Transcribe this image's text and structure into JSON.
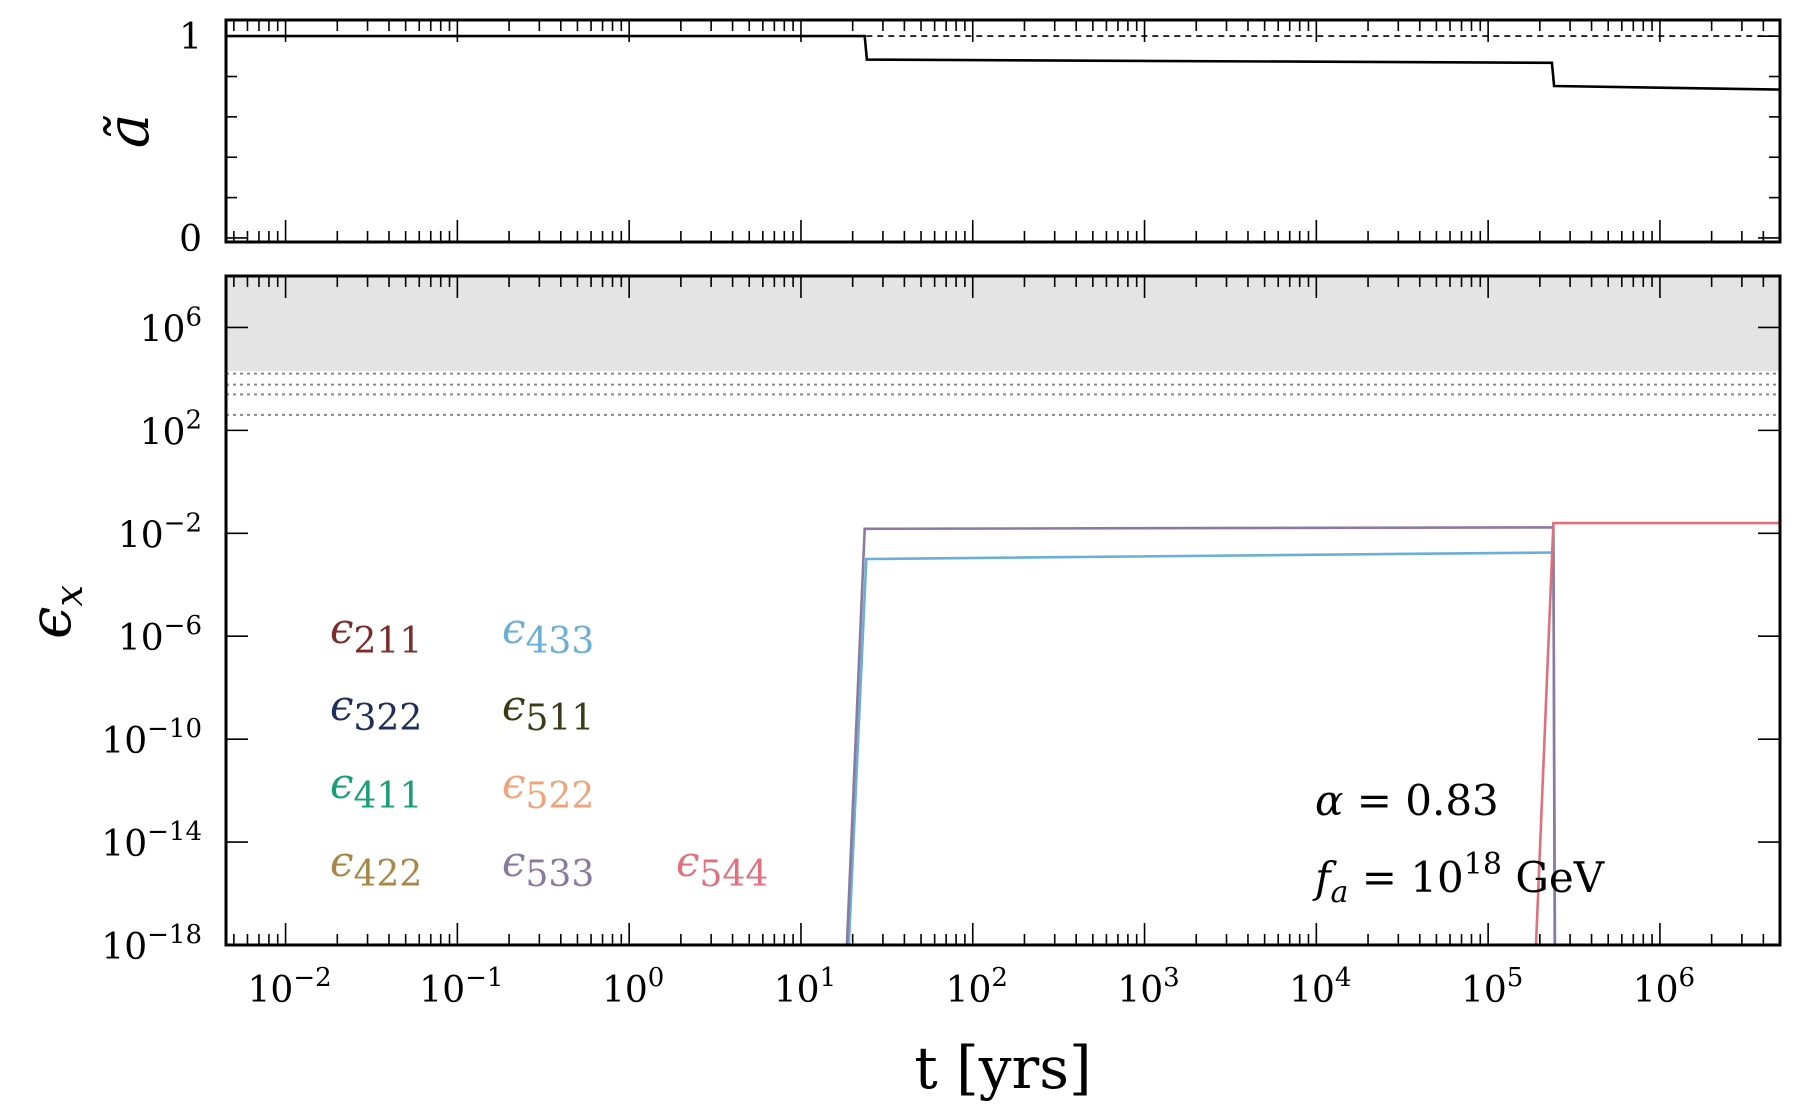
{
  "chart_data": [
    {
      "panel": "top",
      "type": "line",
      "ylabel": "ã",
      "xscale": "log",
      "xlim": [
        0.0045,
        5000000
      ],
      "ylim": [
        -0.02,
        1.08
      ],
      "yticks": [
        {
          "value": 0,
          "label": "0"
        },
        {
          "value": 1,
          "label": "1"
        }
      ],
      "series": [
        {
          "style": "solid",
          "color": "#000000",
          "points": [
            [
              0.0045,
              1.0
            ],
            [
              23.5,
              1.0
            ],
            [
              24.2,
              0.884
            ],
            [
              235000,
              0.868
            ],
            [
              242000,
              0.753
            ],
            [
              5000000,
              0.735
            ]
          ]
        },
        {
          "style": "dashed",
          "color": "#000000",
          "points": [
            [
              24,
              1.0
            ],
            [
              5000000,
              1.0
            ]
          ]
        }
      ]
    },
    {
      "panel": "bottom",
      "type": "line",
      "ylabel": "ϵ",
      "ylabel_sub": "x",
      "xlabel": "t [yrs]",
      "xscale": "log",
      "yscale": "log",
      "xlim": [
        0.0045,
        5000000
      ],
      "ylim": [
        1e-18,
        100000000.0
      ],
      "xticks": [
        {
          "value": 0.01,
          "base": "10",
          "exp": "−2"
        },
        {
          "value": 0.1,
          "base": "10",
          "exp": "−1"
        },
        {
          "value": 1,
          "base": "10",
          "exp": "0"
        },
        {
          "value": 10,
          "base": "10",
          "exp": "1"
        },
        {
          "value": 100,
          "base": "10",
          "exp": "2"
        },
        {
          "value": 1000,
          "base": "10",
          "exp": "3"
        },
        {
          "value": 10000,
          "base": "10",
          "exp": "4"
        },
        {
          "value": 100000,
          "base": "10",
          "exp": "5"
        },
        {
          "value": 1000000,
          "base": "10",
          "exp": "6"
        }
      ],
      "yticks": [
        {
          "value": 1000000.0,
          "base": "10",
          "exp": "6"
        },
        {
          "value": 100.0,
          "base": "10",
          "exp": "2"
        },
        {
          "value": 0.01,
          "base": "10",
          "exp": "−2"
        },
        {
          "value": 1e-06,
          "base": "10",
          "exp": "−6"
        },
        {
          "value": 1e-10,
          "base": "10",
          "exp": "−10"
        },
        {
          "value": 1e-14,
          "base": "10",
          "exp": "−14"
        },
        {
          "value": 1e-18,
          "base": "10",
          "exp": "−18"
        }
      ],
      "shaded_region": {
        "y_from": 20000.0,
        "y_to": 100000000.0,
        "color": "#e4e4e4"
      },
      "hlines_dotted": [
        16000,
        6000,
        2500,
        400
      ],
      "series": [
        {
          "name": "433",
          "color": "#6baed6",
          "points": [
            [
              19,
              1e-18
            ],
            [
              24,
              0.001
            ],
            [
              240000,
              0.0018
            ],
            [
              245000,
              1e-18
            ]
          ]
        },
        {
          "name": "533",
          "color": "#8a7aa0",
          "points": [
            [
              18.5,
              1e-18
            ],
            [
              23.5,
              0.015
            ],
            [
              240000,
              0.017
            ],
            [
              244000,
              1e-18
            ]
          ]
        },
        {
          "name": "544",
          "color": "#e0707e",
          "points": [
            [
              190000,
              1e-18
            ],
            [
              240000,
              0.025
            ],
            [
              5000000,
              0.025
            ]
          ]
        }
      ],
      "legend": [
        {
          "sym": "ϵ",
          "sub": "211",
          "color": "#7b2d2d"
        },
        {
          "sym": "ϵ",
          "sub": "433",
          "color": "#6baed6"
        },
        {
          "sym": "ϵ",
          "sub": "322",
          "color": "#1f2d5c"
        },
        {
          "sym": "ϵ",
          "sub": "511",
          "color": "#3b3b18"
        },
        {
          "sym": "ϵ",
          "sub": "411",
          "color": "#1a9e77"
        },
        {
          "sym": "ϵ",
          "sub": "522",
          "color": "#f0a37a"
        },
        {
          "sym": "ϵ",
          "sub": "422",
          "color": "#a88646"
        },
        {
          "sym": "ϵ",
          "sub": "533",
          "color": "#8a7aa0"
        },
        {
          "sym": "ϵ",
          "sub": "544",
          "color": "#e0707e"
        }
      ],
      "annotations": {
        "alpha": {
          "sym": "α",
          "rest": " = 0.83"
        },
        "fa": {
          "sym": "f",
          "sub": "a",
          "mid": " = 10",
          "sup": "18",
          "unit": " GeV"
        }
      }
    }
  ]
}
